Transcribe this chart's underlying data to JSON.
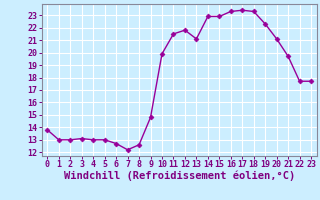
{
  "x": [
    0,
    1,
    2,
    3,
    4,
    5,
    6,
    7,
    8,
    9,
    10,
    11,
    12,
    13,
    14,
    15,
    16,
    17,
    18,
    19,
    20,
    21,
    22,
    23
  ],
  "y": [
    13.8,
    13.0,
    13.0,
    13.1,
    13.0,
    13.0,
    12.7,
    12.2,
    12.6,
    14.8,
    19.9,
    21.5,
    21.8,
    21.1,
    22.9,
    22.9,
    23.3,
    23.4,
    23.3,
    22.3,
    21.1,
    19.7,
    17.7,
    17.7
  ],
  "line_color": "#990099",
  "marker": "D",
  "markersize": 2.5,
  "linewidth": 1.0,
  "xlabel": "Windchill (Refroidissement éolien,°C)",
  "xlabel_fontsize": 7.5,
  "ylabel_ticks": [
    12,
    13,
    14,
    15,
    16,
    17,
    18,
    19,
    20,
    21,
    22,
    23
  ],
  "xlim": [
    -0.5,
    23.5
  ],
  "ylim": [
    11.7,
    23.9
  ],
  "bg_color": "#cceeff",
  "grid_color": "#ffffff",
  "tick_color": "#800080",
  "tick_fontsize": 6.0,
  "spine_color": "#888899"
}
